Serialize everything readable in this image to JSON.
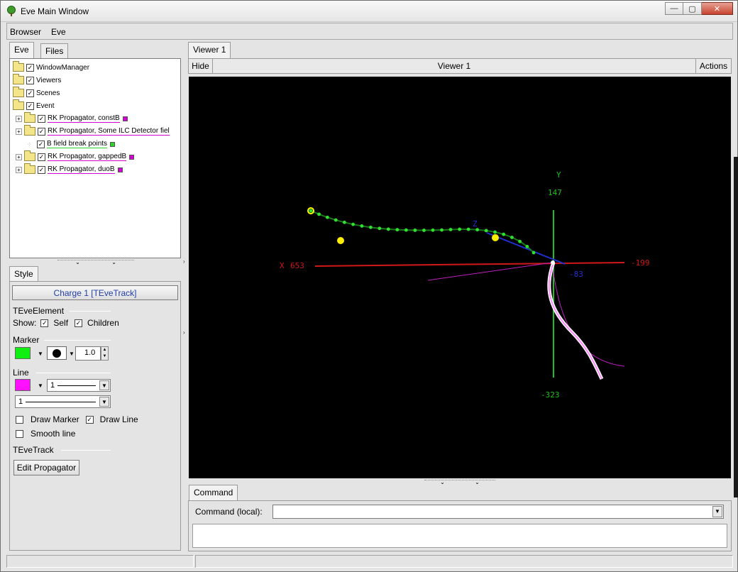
{
  "window": {
    "title": "Eve Main Window",
    "controls": {
      "minimize": "—",
      "maximize": "▢",
      "close": "✕"
    }
  },
  "menubar": {
    "items": [
      "Browser",
      "Eve"
    ]
  },
  "left": {
    "tabs": [
      "Eve",
      "Files"
    ],
    "tree": [
      {
        "label": "WindowManager",
        "checked": true
      },
      {
        "label": "Viewers",
        "checked": true
      },
      {
        "label": "Scenes",
        "checked": true
      },
      {
        "label": "Event",
        "checked": true,
        "open": true
      },
      {
        "label": "RK Propagator, constB",
        "checked": true,
        "color": "#d600d6"
      },
      {
        "label": "RK Propagator, Some ILC Detector fiel",
        "checked": true
      },
      {
        "label": "B field break points",
        "checked": true,
        "color": "#2bd42b"
      },
      {
        "label": "RK Propagator, gappedB",
        "checked": true,
        "color": "#d600d6"
      },
      {
        "label": "RK Propagator, duoB",
        "checked": true,
        "color": "#d600d6"
      }
    ],
    "style_tab": "Style",
    "selected_object": "Charge 1 [TEveTrack]",
    "element_group": "TEveElement",
    "show_label": "Show:",
    "self_label": "Self",
    "children_label": "Children",
    "marker_group": "Marker",
    "marker_color": "#11ee11",
    "marker_size": "1.0",
    "line_group": "Line",
    "line_color": "#ff11ff",
    "line_width": "1",
    "line_style": "1",
    "draw_marker_label": "Draw Marker",
    "draw_line_label": "Draw Line",
    "smooth_line_label": "Smooth line",
    "track_group": "TEveTrack",
    "edit_propagator_label": "Edit Propagator"
  },
  "viewer": {
    "tab": "Viewer 1",
    "hide_label": "Hide",
    "title": "Viewer 1",
    "actions_label": "Actions",
    "axes": {
      "y_title": "Y",
      "y_max": "147",
      "y_min": "-323",
      "x_title": "X",
      "x_max": "653",
      "x_min": "-199",
      "z_title": "Z",
      "z_near": "-83"
    }
  },
  "command": {
    "tab": "Command",
    "label": "Command (local):",
    "value": "",
    "output": ""
  }
}
